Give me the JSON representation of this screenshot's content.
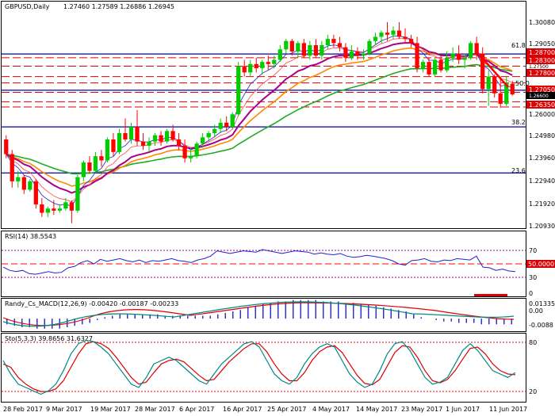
{
  "header": {
    "symbol_timeframe": "GBPUSD,Daily",
    "ohlc": "1.27460 1.27589 1.26886 1.26945"
  },
  "indicators": {
    "rsi": {
      "label": "RSI(14) 38.5543",
      "levels": [
        "70",
        "50.0000",
        "30",
        "0"
      ]
    },
    "macd": {
      "label": "Randy_Cs_MACD(12,26,9) -0.00420 -0.00187 -0.00233",
      "scale": [
        "0.01335",
        "0.00",
        "-0.0088"
      ]
    },
    "stoch": {
      "label": "Sto(5,3,3) 39.8656 31.6327",
      "scale": [
        "80",
        "20"
      ]
    }
  },
  "price_axis": [
    "1.30080",
    "1.29050",
    "1.28700",
    "1.28300",
    "1.27800",
    "1.27050",
    "1.26350",
    "1.26000",
    "1.24980",
    "1.23960",
    "1.22940",
    "1.21920",
    "1.20930"
  ],
  "price_axis_hidden": [
    "1.27500",
    "1.26600"
  ],
  "fib_labels": [
    "61.8",
    "50.0",
    "38.2",
    "23.6"
  ],
  "x_labels": [
    "28 Feb 2017",
    "9 Mar 2017",
    "19 Mar 2017",
    "28 Mar 2017",
    "6 Apr 2017",
    "16 Apr 2017",
    "25 Apr 2017",
    "4 May 2017",
    "14 May 2017",
    "23 May 2017",
    "1 Jun 2017",
    "11 Jun 2017"
  ],
  "colors": {
    "bull": "#00cc00",
    "bear": "#ff0000",
    "fib": "#0000aa",
    "level": "#dd0000",
    "ma_green": "#22aa22",
    "ma_orange": "#ff8800",
    "ma_purple": "#aa0088"
  },
  "chart_data": {
    "type": "candlestick",
    "title": "GBPUSD,Daily",
    "ylim": [
      1.206,
      1.307
    ],
    "candles": [
      {
        "o": 1.248,
        "h": 1.25,
        "l": 1.239,
        "c": 1.241
      },
      {
        "o": 1.241,
        "h": 1.243,
        "l": 1.225,
        "c": 1.228
      },
      {
        "o": 1.228,
        "h": 1.233,
        "l": 1.225,
        "c": 1.23
      },
      {
        "o": 1.23,
        "h": 1.231,
        "l": 1.222,
        "c": 1.224
      },
      {
        "o": 1.224,
        "h": 1.229,
        "l": 1.223,
        "c": 1.228
      },
      {
        "o": 1.228,
        "h": 1.229,
        "l": 1.215,
        "c": 1.217
      },
      {
        "o": 1.217,
        "h": 1.22,
        "l": 1.211,
        "c": 1.213
      },
      {
        "o": 1.213,
        "h": 1.216,
        "l": 1.211,
        "c": 1.215
      },
      {
        "o": 1.215,
        "h": 1.219,
        "l": 1.212,
        "c": 1.214
      },
      {
        "o": 1.214,
        "h": 1.217,
        "l": 1.213,
        "c": 1.215
      },
      {
        "o": 1.215,
        "h": 1.22,
        "l": 1.214,
        "c": 1.218
      },
      {
        "o": 1.218,
        "h": 1.219,
        "l": 1.208,
        "c": 1.214
      },
      {
        "o": 1.214,
        "h": 1.231,
        "l": 1.213,
        "c": 1.23
      },
      {
        "o": 1.23,
        "h": 1.238,
        "l": 1.228,
        "c": 1.237
      },
      {
        "o": 1.237,
        "h": 1.24,
        "l": 1.232,
        "c": 1.233
      },
      {
        "o": 1.233,
        "h": 1.242,
        "l": 1.232,
        "c": 1.24
      },
      {
        "o": 1.24,
        "h": 1.243,
        "l": 1.235,
        "c": 1.238
      },
      {
        "o": 1.238,
        "h": 1.249,
        "l": 1.237,
        "c": 1.248
      },
      {
        "o": 1.248,
        "h": 1.251,
        "l": 1.24,
        "c": 1.242
      },
      {
        "o": 1.242,
        "h": 1.253,
        "l": 1.241,
        "c": 1.251
      },
      {
        "o": 1.251,
        "h": 1.258,
        "l": 1.247,
        "c": 1.248
      },
      {
        "o": 1.248,
        "h": 1.256,
        "l": 1.246,
        "c": 1.254
      },
      {
        "o": 1.254,
        "h": 1.262,
        "l": 1.245,
        "c": 1.247
      },
      {
        "o": 1.247,
        "h": 1.251,
        "l": 1.243,
        "c": 1.245
      },
      {
        "o": 1.245,
        "h": 1.249,
        "l": 1.242,
        "c": 1.247
      },
      {
        "o": 1.247,
        "h": 1.251,
        "l": 1.245,
        "c": 1.25
      },
      {
        "o": 1.25,
        "h": 1.252,
        "l": 1.245,
        "c": 1.247
      },
      {
        "o": 1.247,
        "h": 1.253,
        "l": 1.246,
        "c": 1.252
      },
      {
        "o": 1.252,
        "h": 1.255,
        "l": 1.247,
        "c": 1.248
      },
      {
        "o": 1.248,
        "h": 1.251,
        "l": 1.243,
        "c": 1.245
      },
      {
        "o": 1.245,
        "h": 1.248,
        "l": 1.237,
        "c": 1.239
      },
      {
        "o": 1.239,
        "h": 1.244,
        "l": 1.237,
        "c": 1.24
      },
      {
        "o": 1.24,
        "h": 1.247,
        "l": 1.239,
        "c": 1.246
      },
      {
        "o": 1.246,
        "h": 1.251,
        "l": 1.244,
        "c": 1.249
      },
      {
        "o": 1.249,
        "h": 1.252,
        "l": 1.247,
        "c": 1.251
      },
      {
        "o": 1.251,
        "h": 1.255,
        "l": 1.249,
        "c": 1.253
      },
      {
        "o": 1.253,
        "h": 1.258,
        "l": 1.251,
        "c": 1.256
      },
      {
        "o": 1.256,
        "h": 1.259,
        "l": 1.252,
        "c": 1.254
      },
      {
        "o": 1.254,
        "h": 1.261,
        "l": 1.253,
        "c": 1.26
      },
      {
        "o": 1.26,
        "h": 1.285,
        "l": 1.259,
        "c": 1.283
      },
      {
        "o": 1.283,
        "h": 1.286,
        "l": 1.278,
        "c": 1.28
      },
      {
        "o": 1.28,
        "h": 1.286,
        "l": 1.278,
        "c": 1.284
      },
      {
        "o": 1.284,
        "h": 1.287,
        "l": 1.28,
        "c": 1.282
      },
      {
        "o": 1.282,
        "h": 1.286,
        "l": 1.279,
        "c": 1.285
      },
      {
        "o": 1.285,
        "h": 1.288,
        "l": 1.281,
        "c": 1.284
      },
      {
        "o": 1.284,
        "h": 1.288,
        "l": 1.282,
        "c": 1.286
      },
      {
        "o": 1.286,
        "h": 1.293,
        "l": 1.285,
        "c": 1.291
      },
      {
        "o": 1.291,
        "h": 1.296,
        "l": 1.289,
        "c": 1.295
      },
      {
        "o": 1.295,
        "h": 1.296,
        "l": 1.288,
        "c": 1.29
      },
      {
        "o": 1.29,
        "h": 1.295,
        "l": 1.287,
        "c": 1.294
      },
      {
        "o": 1.294,
        "h": 1.296,
        "l": 1.287,
        "c": 1.288
      },
      {
        "o": 1.288,
        "h": 1.295,
        "l": 1.286,
        "c": 1.293
      },
      {
        "o": 1.293,
        "h": 1.296,
        "l": 1.287,
        "c": 1.288
      },
      {
        "o": 1.288,
        "h": 1.295,
        "l": 1.286,
        "c": 1.293
      },
      {
        "o": 1.293,
        "h": 1.298,
        "l": 1.291,
        "c": 1.296
      },
      {
        "o": 1.296,
        "h": 1.298,
        "l": 1.292,
        "c": 1.294
      },
      {
        "o": 1.294,
        "h": 1.297,
        "l": 1.29,
        "c": 1.292
      },
      {
        "o": 1.292,
        "h": 1.294,
        "l": 1.285,
        "c": 1.287
      },
      {
        "o": 1.287,
        "h": 1.293,
        "l": 1.286,
        "c": 1.29
      },
      {
        "o": 1.29,
        "h": 1.292,
        "l": 1.286,
        "c": 1.288
      },
      {
        "o": 1.288,
        "h": 1.291,
        "l": 1.286,
        "c": 1.289
      },
      {
        "o": 1.289,
        "h": 1.296,
        "l": 1.288,
        "c": 1.295
      },
      {
        "o": 1.295,
        "h": 1.299,
        "l": 1.293,
        "c": 1.297
      },
      {
        "o": 1.297,
        "h": 1.3,
        "l": 1.294,
        "c": 1.299
      },
      {
        "o": 1.299,
        "h": 1.304,
        "l": 1.295,
        "c": 1.298
      },
      {
        "o": 1.298,
        "h": 1.302,
        "l": 1.296,
        "c": 1.3
      },
      {
        "o": 1.3,
        "h": 1.304,
        "l": 1.296,
        "c": 1.297
      },
      {
        "o": 1.297,
        "h": 1.301,
        "l": 1.294,
        "c": 1.296
      },
      {
        "o": 1.296,
        "h": 1.298,
        "l": 1.292,
        "c": 1.294
      },
      {
        "o": 1.294,
        "h": 1.297,
        "l": 1.28,
        "c": 1.282
      },
      {
        "o": 1.282,
        "h": 1.286,
        "l": 1.28,
        "c": 1.285
      },
      {
        "o": 1.285,
        "h": 1.287,
        "l": 1.278,
        "c": 1.279
      },
      {
        "o": 1.279,
        "h": 1.287,
        "l": 1.278,
        "c": 1.286
      },
      {
        "o": 1.286,
        "h": 1.288,
        "l": 1.28,
        "c": 1.281
      },
      {
        "o": 1.281,
        "h": 1.29,
        "l": 1.28,
        "c": 1.287
      },
      {
        "o": 1.287,
        "h": 1.292,
        "l": 1.285,
        "c": 1.289
      },
      {
        "o": 1.289,
        "h": 1.293,
        "l": 1.284,
        "c": 1.286
      },
      {
        "o": 1.286,
        "h": 1.289,
        "l": 1.282,
        "c": 1.287
      },
      {
        "o": 1.287,
        "h": 1.295,
        "l": 1.286,
        "c": 1.294
      },
      {
        "o": 1.294,
        "h": 1.297,
        "l": 1.286,
        "c": 1.289
      },
      {
        "o": 1.289,
        "h": 1.292,
        "l": 1.27,
        "c": 1.272
      },
      {
        "o": 1.272,
        "h": 1.281,
        "l": 1.264,
        "c": 1.278
      },
      {
        "o": 1.278,
        "h": 1.279,
        "l": 1.268,
        "c": 1.27
      },
      {
        "o": 1.27,
        "h": 1.278,
        "l": 1.263,
        "c": 1.265
      },
      {
        "o": 1.265,
        "h": 1.278,
        "l": 1.264,
        "c": 1.275
      },
      {
        "o": 1.2746,
        "h": 1.2759,
        "l": 1.2689,
        "c": 1.2695
      }
    ],
    "horizontal_levels": [
      1.287,
      1.283,
      1.278,
      1.2705,
      1.2635
    ],
    "dashed_levels": [
      1.275,
      1.266
    ],
    "fib_levels": [
      {
        "label": "61.8",
        "value": 1.2888
      },
      {
        "label": "50.0",
        "value": 1.2715
      },
      {
        "label": "38.2",
        "value": 1.254
      },
      {
        "label": "23.6",
        "value": 1.232
      }
    ],
    "rsi": {
      "ylim": [
        0,
        100
      ],
      "levels": [
        70,
        50,
        30
      ],
      "values": [
        45,
        40,
        38,
        40,
        35,
        34,
        36,
        38,
        36,
        37,
        44,
        46,
        52,
        55,
        50,
        57,
        54,
        56,
        58,
        55,
        53,
        56,
        52,
        55,
        54,
        56,
        58,
        55,
        54,
        52,
        56,
        58,
        62,
        70,
        68,
        66,
        68,
        70,
        69,
        68,
        72,
        70,
        68,
        66,
        68,
        70,
        69,
        68,
        65,
        67,
        65,
        64,
        66,
        62,
        60,
        61,
        63,
        62,
        60,
        58,
        55,
        50,
        48,
        55,
        56,
        58,
        54,
        53,
        56,
        55,
        58,
        57,
        56,
        62,
        45,
        44,
        40,
        42,
        39,
        38
      ]
    },
    "macd": {
      "ylim": [
        -0.0088,
        0.01335
      ],
      "hist": [
        -0.004,
        -0.005,
        -0.006,
        -0.006,
        -0.007,
        -0.007,
        -0.007,
        -0.007,
        -0.006,
        -0.005,
        -0.004,
        -0.003,
        -0.001,
        0.001,
        0.002,
        0.003,
        0.003,
        0.003,
        0.003,
        0.003,
        0.003,
        0.002,
        0.002,
        0.002,
        0.002,
        0.002,
        0.002,
        0.002,
        0.003,
        0.004,
        0.005,
        0.006,
        0.008,
        0.009,
        0.01,
        0.011,
        0.012,
        0.012,
        0.013,
        0.013,
        0.013,
        0.013,
        0.012,
        0.012,
        0.012,
        0.011,
        0.011,
        0.01,
        0.01,
        0.009,
        0.008,
        0.007,
        0.006,
        0.005,
        0.003,
        0.001,
        0.0,
        -0.001,
        -0.002,
        -0.002,
        -0.003,
        -0.003,
        -0.003,
        -0.004,
        -0.004,
        -0.004,
        -0.004,
        -0.004
      ]
    },
    "stoch": {
      "ylim": [
        0,
        100
      ],
      "k": [
        60,
        40,
        25,
        20,
        15,
        10,
        15,
        25,
        45,
        70,
        85,
        90,
        88,
        80,
        70,
        55,
        40,
        25,
        20,
        35,
        55,
        60,
        65,
        60,
        50,
        40,
        30,
        25,
        40,
        55,
        65,
        75,
        85,
        88,
        80,
        60,
        40,
        30,
        25,
        35,
        55,
        70,
        80,
        85,
        80,
        60,
        40,
        28,
        20,
        25,
        45,
        70,
        85,
        88,
        75,
        55,
        35,
        25,
        28,
        35,
        55,
        75,
        85,
        75,
        60,
        45,
        40,
        35,
        42
      ],
      "d": [
        55,
        50,
        35,
        25,
        18,
        14,
        14,
        18,
        30,
        50,
        70,
        85,
        88,
        85,
        78,
        65,
        50,
        35,
        25,
        28,
        42,
        55,
        60,
        62,
        58,
        48,
        38,
        30,
        32,
        45,
        58,
        68,
        78,
        85,
        85,
        73,
        55,
        40,
        30,
        30,
        42,
        60,
        73,
        80,
        82,
        72,
        55,
        38,
        26,
        24,
        32,
        52,
        72,
        82,
        80,
        65,
        45,
        30,
        27,
        32,
        45,
        62,
        78,
        80,
        70,
        55,
        45,
        40,
        39
      ]
    }
  }
}
